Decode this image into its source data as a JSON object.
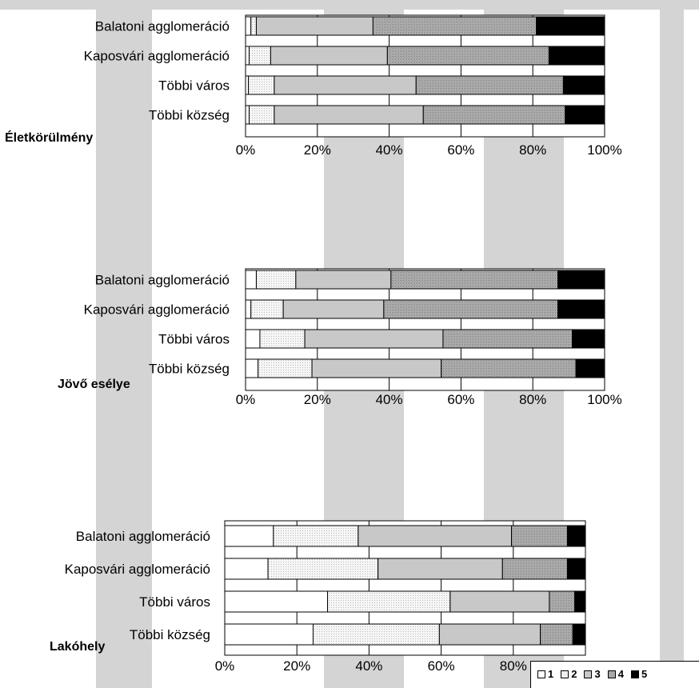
{
  "chart_data": [
    {
      "type": "bar",
      "orientation": "horizontal",
      "stacked": "percent",
      "title": "Életkörülmény",
      "categories": [
        "Balatoni agglomeráció",
        "Kaposvári agglomeráció",
        "Többi város",
        "Többi község"
      ],
      "xlim": [
        0,
        100
      ],
      "x_ticks": [
        "0%",
        "20%",
        "40%",
        "60%",
        "80%",
        "100%"
      ],
      "series": [
        {
          "name": "1",
          "values": [
            1.5,
            1.0,
            0.8,
            1.0
          ]
        },
        {
          "name": "2",
          "values": [
            1.5,
            6.0,
            7.2,
            7.0
          ]
        },
        {
          "name": "3",
          "values": [
            32.5,
            32.5,
            39.5,
            41.5
          ]
        },
        {
          "name": "4",
          "values": [
            45.5,
            45.0,
            41.0,
            39.5
          ]
        },
        {
          "name": "5",
          "values": [
            19.0,
            15.5,
            11.5,
            11.0
          ]
        }
      ]
    },
    {
      "type": "bar",
      "orientation": "horizontal",
      "stacked": "percent",
      "title": "Jövő esélye",
      "categories": [
        "Balatoni agglomeráció",
        "Kaposvári agglomeráció",
        "Többi város",
        "Többi község"
      ],
      "xlim": [
        0,
        100
      ],
      "x_ticks": [
        "0%",
        "20%",
        "40%",
        "60%",
        "80%",
        "100%"
      ],
      "series": [
        {
          "name": "1",
          "values": [
            3.0,
            1.5,
            4.0,
            3.5
          ]
        },
        {
          "name": "2",
          "values": [
            11.0,
            9.0,
            12.5,
            15.0
          ]
        },
        {
          "name": "3",
          "values": [
            26.5,
            28.0,
            38.5,
            36.0
          ]
        },
        {
          "name": "4",
          "values": [
            46.5,
            48.5,
            36.0,
            37.5
          ]
        },
        {
          "name": "5",
          "values": [
            13.0,
            13.0,
            9.0,
            8.0
          ]
        }
      ]
    },
    {
      "type": "bar",
      "orientation": "horizontal",
      "stacked": "percent",
      "title": "Lakóhely",
      "categories": [
        "Balatoni agglomeráció",
        "Kaposvári agglomeráció",
        "Többi város",
        "Többi község"
      ],
      "xlim": [
        0,
        100
      ],
      "x_ticks": [
        "0%",
        "20%",
        "40%",
        "60%",
        "80%",
        "100%"
      ],
      "series": [
        {
          "name": "1",
          "values": [
            13.5,
            12.0,
            28.5,
            24.5
          ]
        },
        {
          "name": "2",
          "values": [
            23.5,
            30.5,
            34.0,
            35.0
          ]
        },
        {
          "name": "3",
          "values": [
            42.5,
            34.5,
            27.5,
            28.0
          ]
        },
        {
          "name": "4",
          "values": [
            15.5,
            18.0,
            7.0,
            9.0
          ]
        },
        {
          "name": "5",
          "values": [
            5.0,
            5.0,
            3.0,
            3.5
          ]
        }
      ]
    }
  ],
  "legend": {
    "placement": "bottom-right",
    "items": [
      {
        "label": "1",
        "color": "#ffffff"
      },
      {
        "label": "2",
        "color": "#eeeeee"
      },
      {
        "label": "3",
        "color": "#c8c8c8"
      },
      {
        "label": "4",
        "color": "#a8a8a8"
      },
      {
        "label": "5",
        "color": "#000000"
      }
    ]
  },
  "colors": {
    "background": "#ffffff",
    "watermark_band": "#d4d4d4"
  },
  "series_patterns": [
    "empty",
    "light-dots",
    "grey",
    "dense-dots",
    "black"
  ]
}
